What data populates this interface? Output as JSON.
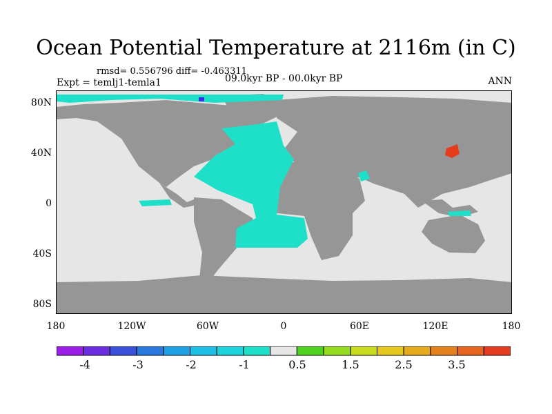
{
  "title": "Ocean Potential Temperature at 2116m (in C)",
  "stats": "rmsd= 0.556796 diff= -0.463311",
  "expt": "Expt = temlj1-temla1",
  "period": "09.0kyr BP - 00.0kyr BP",
  "season": "ANN",
  "lat_labels": [
    "80N",
    "40N",
    "0",
    "40S",
    "80S"
  ],
  "lon_labels": [
    "180",
    "120W",
    "60W",
    "0",
    "60E",
    "120E",
    "180"
  ],
  "colorbar": {
    "colors": [
      "#9b1ee6",
      "#6a2ee0",
      "#3a50dc",
      "#2a78dc",
      "#1ea0e6",
      "#1ec0e6",
      "#1ed2dc",
      "#1ee0c8",
      "#e6e6e6",
      "#50d21e",
      "#96dc1e",
      "#c8dc1e",
      "#e6c81e",
      "#e6aa1e",
      "#e6821e",
      "#e6641e",
      "#e63c1e"
    ],
    "labels": [
      "-4",
      "-3",
      "-2",
      "-1",
      "0.5",
      "1.5",
      "2.5",
      "3.5"
    ]
  },
  "colors": {
    "ocean_no_change": "#e6e6e6",
    "land": "#969696",
    "anomaly_cool": "#1ee0c8",
    "anomaly_cold": "#3a2ee0",
    "anomaly_warm": "#e63c1e"
  }
}
